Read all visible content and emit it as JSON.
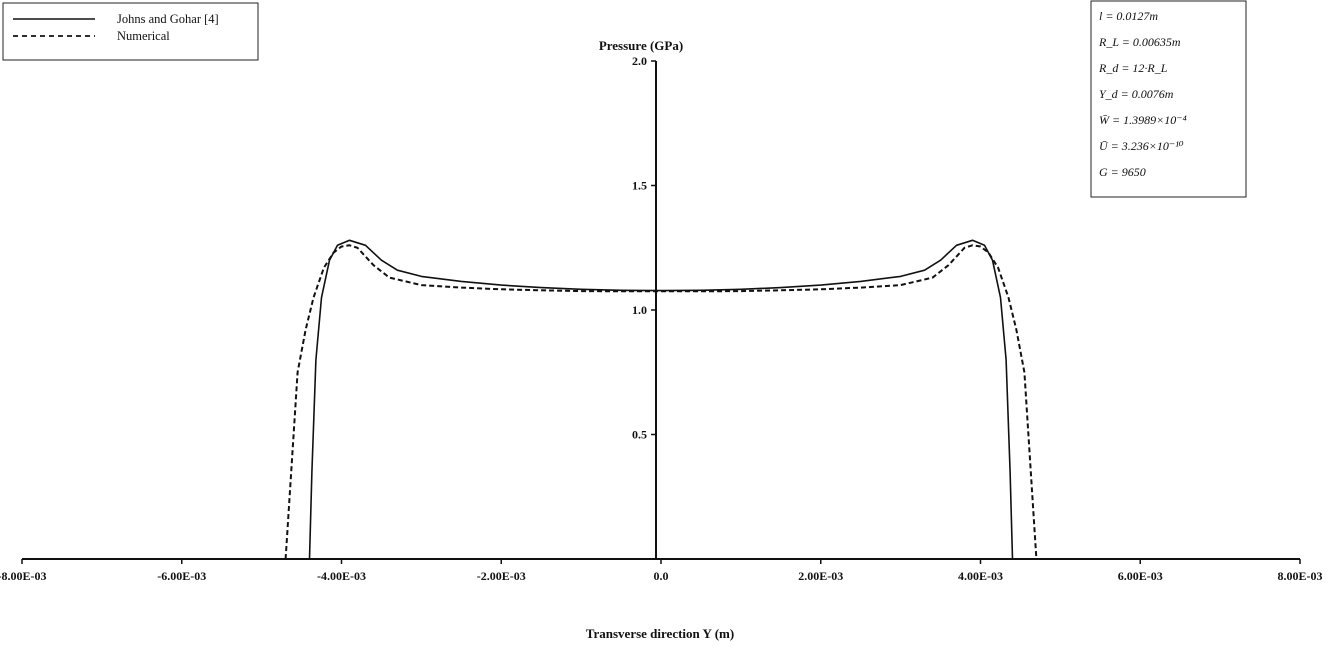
{
  "chart_data": {
    "type": "line",
    "xlabel": "Transverse direction Y (m)",
    "ylabel": "Pressure (GPa)",
    "xlim": [
      -0.008,
      0.008
    ],
    "ylim": [
      0,
      2.0
    ],
    "x_ticks": [
      -0.008,
      -0.006,
      -0.004,
      -0.002,
      0.0,
      0.002,
      0.004,
      0.006,
      0.008
    ],
    "x_tick_labels": [
      "-8.00E-03",
      "-6.00E-03",
      "-4.00E-03",
      "-2.00E-03",
      "0.0",
      "2.00E-03",
      "4.00E-03",
      "6.00E-03",
      "8.00E-03"
    ],
    "y_ticks": [
      0.5,
      1.0,
      1.5,
      2.0
    ],
    "y_tick_labels": [
      "0.5",
      "1.0",
      "1.5",
      "2.0"
    ],
    "grid": false,
    "legend_position": "top-left",
    "series": [
      {
        "name": "Johns and Gohar [4]",
        "style": "solid",
        "x": [
          -0.0044,
          -0.00437,
          -0.00432,
          -0.00425,
          -0.00415,
          -0.00405,
          -0.0039,
          -0.0037,
          -0.0035,
          -0.0033,
          -0.003,
          -0.0025,
          -0.002,
          -0.0015,
          -0.001,
          -0.0005,
          0.0,
          0.0005,
          0.001,
          0.0015,
          0.002,
          0.0025,
          0.003,
          0.0033,
          0.0035,
          0.0037,
          0.0039,
          0.00405,
          0.00415,
          0.00425,
          0.00432,
          0.00437,
          0.0044
        ],
        "y": [
          0.0,
          0.35,
          0.8,
          1.05,
          1.2,
          1.26,
          1.28,
          1.26,
          1.2,
          1.16,
          1.135,
          1.115,
          1.1,
          1.09,
          1.083,
          1.079,
          1.078,
          1.079,
          1.083,
          1.09,
          1.1,
          1.115,
          1.135,
          1.16,
          1.2,
          1.26,
          1.28,
          1.26,
          1.2,
          1.05,
          0.8,
          0.35,
          0.0
        ]
      },
      {
        "name": "Numerical",
        "style": "dashed",
        "x": [
          -0.0047,
          -0.00463,
          -0.00455,
          -0.00445,
          -0.00435,
          -0.00422,
          -0.0041,
          -0.004,
          -0.0039,
          -0.0038,
          -0.0036,
          -0.0034,
          -0.003,
          -0.0025,
          -0.002,
          -0.0015,
          -0.001,
          -0.0005,
          0.0,
          0.0005,
          0.001,
          0.0015,
          0.002,
          0.0025,
          0.003,
          0.0034,
          0.0036,
          0.0038,
          0.0039,
          0.004,
          0.0041,
          0.00422,
          0.00435,
          0.00445,
          0.00455,
          0.00463,
          0.0047
        ],
        "y": [
          0.0,
          0.35,
          0.75,
          0.92,
          1.05,
          1.17,
          1.23,
          1.255,
          1.26,
          1.25,
          1.18,
          1.13,
          1.1,
          1.09,
          1.083,
          1.079,
          1.076,
          1.075,
          1.075,
          1.075,
          1.076,
          1.079,
          1.083,
          1.09,
          1.1,
          1.13,
          1.18,
          1.25,
          1.26,
          1.255,
          1.23,
          1.17,
          1.05,
          0.92,
          0.75,
          0.35,
          0.0
        ]
      }
    ],
    "parameters": [
      "l = 0.0127m",
      "R_L = 0.00635m",
      "R_d = 12·R_L",
      "Y_d = 0.0076m",
      "W̄ = 1.3989×10⁻⁴",
      "Ū = 3.236×10⁻¹⁰",
      "G = 9650"
    ]
  }
}
